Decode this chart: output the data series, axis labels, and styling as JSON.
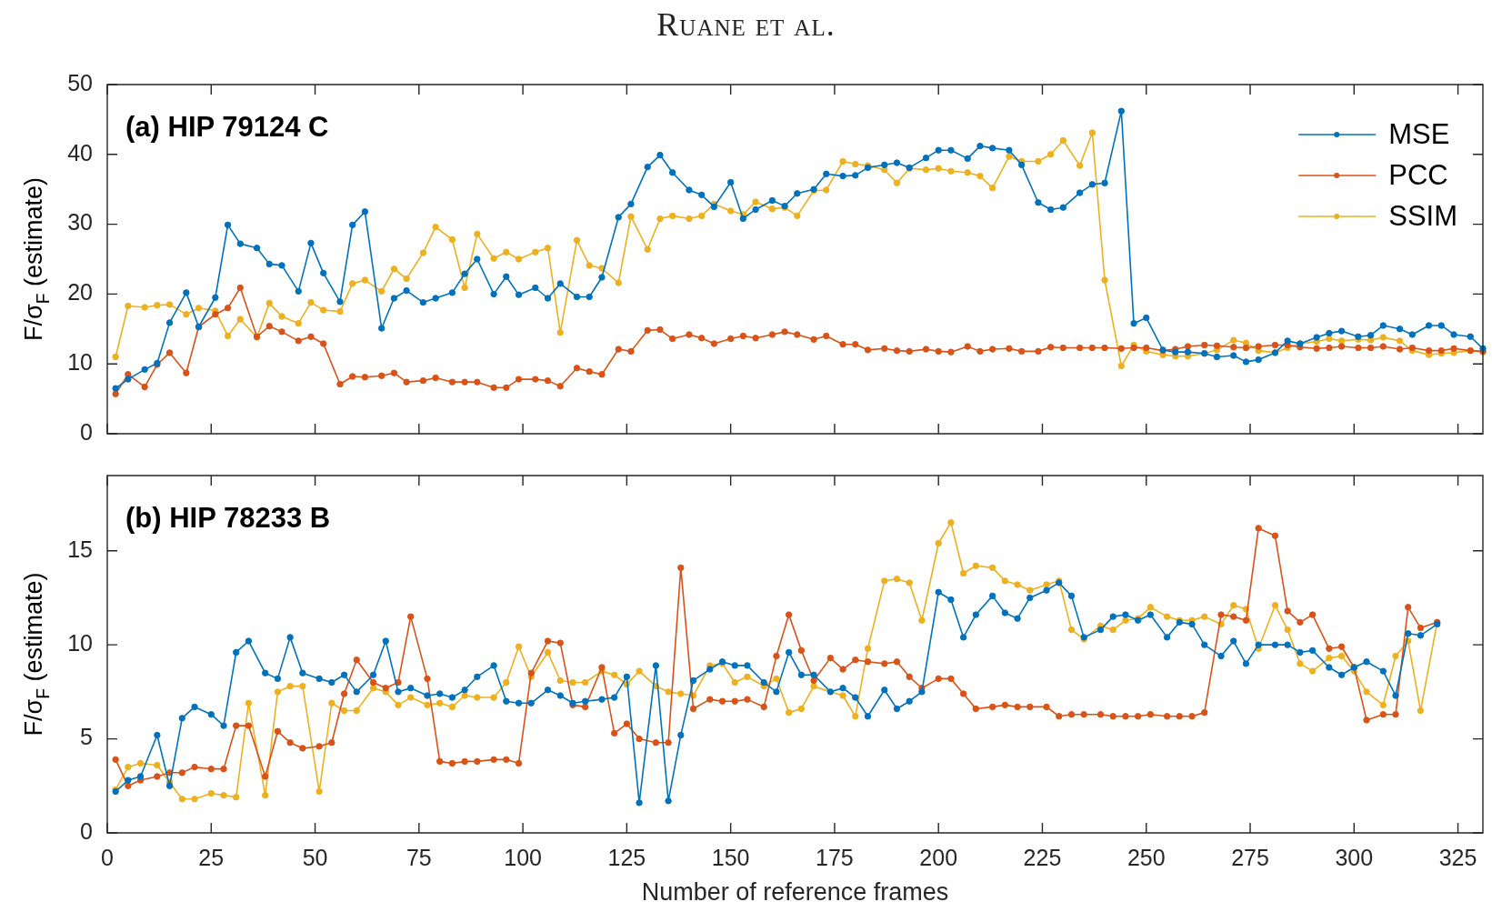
{
  "chart_data": [
    {
      "type": "line",
      "title": "(a) HIP 79124 C",
      "ylabel": "F/σ$_{F}$ (estimate)",
      "annotations": [
        "Ruane et al."
      ],
      "x": [
        2,
        5,
        9,
        12,
        15,
        19,
        22,
        26,
        29,
        32,
        36,
        39,
        42,
        46,
        49,
        52,
        56,
        59,
        62,
        66,
        69,
        72,
        76,
        79,
        83,
        86,
        89,
        93,
        96,
        99,
        103,
        106,
        109,
        113,
        116,
        119,
        123,
        126,
        130,
        133,
        136,
        140,
        143,
        146,
        150,
        153,
        156,
        160,
        163,
        166,
        170,
        173,
        177,
        180,
        183,
        187,
        190,
        193,
        197,
        200,
        203,
        207,
        210,
        213,
        217,
        220,
        224,
        227,
        230,
        234,
        237,
        240,
        244,
        247,
        250,
        254,
        257,
        260,
        264,
        267,
        271,
        274,
        277,
        281,
        284,
        287,
        291,
        294,
        297,
        301,
        304,
        307,
        311,
        314,
        318,
        321,
        324,
        328,
        331
      ],
      "series": [
        {
          "name": "MSE",
          "color": "#0072bd",
          "values": [
            6.5,
            7.8,
            9.2,
            10.1,
            15.9,
            20.2,
            15.3,
            19.5,
            29.9,
            27.2,
            26.6,
            24.3,
            24.1,
            20.4,
            27.3,
            23.0,
            18.9,
            29.9,
            31.8,
            15.1,
            19.4,
            20.5,
            18.8,
            19.4,
            20.2,
            22.9,
            25.0,
            20.0,
            22.5,
            19.9,
            20.9,
            19.4,
            21.5,
            19.6,
            19.6,
            22.4,
            31.0,
            32.9,
            38.2,
            39.9,
            37.4,
            34.9,
            34.2,
            32.5,
            36.0,
            30.8,
            32.1,
            33.4,
            32.6,
            34.4,
            35.0,
            37.2,
            36.9,
            37.0,
            38.1,
            38.5,
            38.8,
            38.1,
            39.5,
            40.6,
            40.6,
            39.4,
            41.2,
            40.9,
            40.6,
            38.5,
            33.1,
            32.1,
            32.4,
            34.5,
            35.7,
            35.9,
            46.2,
            15.8,
            16.6,
            12.0,
            11.7,
            11.7,
            11.5,
            11.0,
            11.2,
            10.3,
            10.6,
            11.6,
            13.3,
            12.9,
            13.8,
            14.4,
            14.7,
            13.9,
            14.1,
            15.5,
            15.0,
            14.2,
            15.5,
            15.5,
            14.2,
            13.9,
            12.2
          ]
        },
        {
          "name": "PCC",
          "color": "#d95319",
          "values": [
            5.7,
            8.5,
            6.7,
            9.9,
            11.6,
            8.7,
            15.3,
            17.1,
            18.0,
            20.9,
            13.9,
            15.4,
            14.6,
            13.3,
            13.9,
            12.9,
            7.1,
            8.2,
            8.1,
            8.3,
            8.7,
            7.4,
            7.6,
            8.0,
            7.4,
            7.4,
            7.4,
            6.6,
            6.6,
            7.8,
            7.8,
            7.6,
            6.8,
            9.4,
            8.9,
            8.5,
            12.1,
            11.8,
            14.8,
            14.9,
            13.6,
            14.2,
            13.7,
            12.9,
            13.6,
            14.0,
            13.7,
            14.2,
            14.6,
            14.2,
            13.5,
            14.0,
            12.8,
            12.8,
            12.0,
            12.2,
            11.9,
            11.8,
            12.1,
            11.8,
            11.7,
            12.5,
            11.8,
            12.1,
            12.2,
            11.8,
            11.8,
            12.4,
            12.3,
            12.3,
            12.3,
            12.3,
            12.2,
            12.3,
            12.3,
            11.9,
            12.1,
            12.5,
            12.7,
            12.6,
            12.4,
            12.3,
            12.5,
            12.7,
            12.7,
            12.4,
            12.2,
            12.3,
            12.5,
            12.3,
            12.3,
            12.5,
            12.1,
            12.3,
            11.9,
            11.9,
            12.2,
            11.9,
            11.8
          ]
        },
        {
          "name": "SSIM",
          "color": "#edb120",
          "values": [
            11.0,
            18.3,
            18.1,
            18.4,
            18.5,
            17.1,
            18.0,
            17.6,
            14.0,
            16.4,
            13.8,
            18.7,
            16.8,
            15.8,
            18.8,
            17.7,
            17.5,
            21.5,
            22.0,
            20.4,
            23.6,
            22.2,
            25.9,
            29.6,
            27.8,
            20.9,
            28.6,
            25.1,
            26.0,
            25.0,
            26.0,
            26.6,
            14.5,
            27.7,
            24.1,
            23.7,
            21.6,
            31.1,
            26.4,
            30.8,
            31.2,
            30.8,
            31.2,
            32.9,
            31.9,
            31.4,
            33.2,
            32.2,
            32.4,
            31.2,
            34.8,
            34.9,
            39.0,
            38.6,
            38.4,
            37.8,
            35.9,
            38.0,
            37.8,
            38.0,
            37.6,
            37.4,
            36.9,
            35.2,
            39.7,
            39.0,
            39.0,
            40.0,
            42.0,
            38.4,
            43.1,
            22.0,
            9.7,
            12.7,
            11.8,
            11.3,
            11.1,
            11.1,
            11.5,
            12.0,
            13.4,
            13.0,
            11.9,
            11.6,
            12.3,
            12.9,
            13.2,
            13.6,
            13.3,
            13.5,
            13.4,
            13.8,
            13.3,
            11.9,
            11.3,
            11.5,
            11.6,
            11.9,
            11.7
          ]
        }
      ],
      "xlim": [
        0,
        331
      ],
      "xticks": [
        0,
        25,
        50,
        75,
        100,
        125,
        150,
        175,
        200,
        225,
        250,
        275,
        300,
        325
      ],
      "ylim": [
        0,
        50
      ],
      "yticks": [
        0,
        10,
        20,
        30,
        40,
        50
      ],
      "tick_labels": "y",
      "marker": "circle",
      "legend": "top right"
    },
    {
      "type": "line",
      "title": "(b) HIP 78233 B",
      "xlabel": "Number of reference frames",
      "ylabel": "F/σ$_{F}$ (estimate)",
      "x": [
        2,
        5,
        8,
        12,
        15,
        18,
        21,
        25,
        28,
        31,
        34,
        38,
        41,
        44,
        47,
        51,
        54,
        57,
        60,
        64,
        67,
        70,
        73,
        77,
        80,
        83,
        86,
        89,
        93,
        96,
        99,
        102,
        106,
        109,
        112,
        115,
        119,
        122,
        125,
        128,
        132,
        135,
        138,
        141,
        145,
        148,
        151,
        154,
        158,
        161,
        164,
        167,
        170,
        174,
        177,
        180,
        183,
        187,
        190,
        193,
        196,
        200,
        203,
        206,
        209,
        213,
        216,
        219,
        222,
        226,
        229,
        232,
        235,
        239,
        242,
        245,
        248,
        251,
        255,
        258,
        261,
        264,
        268,
        271,
        274,
        277,
        281,
        284,
        287,
        290,
        294,
        297,
        300,
        303,
        307,
        310,
        313,
        316,
        320
      ],
      "series": [
        {
          "color": "#0072bd",
          "values": [
            2.2,
            2.8,
            3.0,
            5.2,
            2.5,
            6.1,
            6.7,
            6.3,
            5.7,
            9.6,
            10.2,
            8.5,
            8.2,
            10.4,
            8.5,
            8.2,
            8.0,
            8.4,
            7.5,
            8.4,
            10.2,
            7.5,
            7.7,
            7.3,
            7.4,
            7.2,
            7.6,
            8.3,
            8.9,
            7.0,
            6.9,
            6.9,
            7.6,
            7.3,
            6.9,
            7.0,
            7.1,
            7.2,
            8.3,
            1.6,
            8.9,
            1.7,
            5.2,
            8.1,
            8.7,
            9.1,
            8.9,
            8.9,
            8.0,
            7.5,
            9.6,
            8.4,
            8.4,
            7.5,
            7.7,
            7.2,
            6.2,
            7.6,
            6.6,
            7.0,
            7.5,
            12.8,
            12.4,
            10.4,
            11.6,
            12.6,
            11.7,
            11.4,
            12.5,
            12.9,
            13.3,
            12.6,
            10.4,
            10.8,
            11.5,
            11.6,
            11.3,
            11.6,
            10.4,
            11.2,
            11.1,
            10.0,
            9.4,
            10.2,
            9.0,
            10.0,
            10.0,
            10.0,
            9.6,
            9.7,
            8.8,
            8.4,
            8.8,
            9.1,
            8.6,
            7.3,
            10.6,
            10.5,
            11.1
          ]
        },
        {
          "color": "#d95319",
          "values": [
            3.9,
            2.5,
            2.8,
            3.0,
            3.2,
            3.2,
            3.5,
            3.4,
            3.4,
            5.7,
            5.7,
            3.0,
            5.4,
            4.8,
            4.5,
            4.6,
            4.8,
            7.4,
            9.2,
            8.0,
            7.7,
            8.0,
            11.5,
            8.2,
            3.8,
            3.7,
            3.8,
            3.8,
            3.9,
            3.9,
            3.7,
            8.5,
            10.2,
            10.1,
            6.8,
            6.7,
            8.8,
            5.3,
            5.8,
            5.0,
            4.8,
            4.8,
            14.1,
            6.6,
            7.1,
            7.0,
            7.0,
            7.1,
            6.7,
            9.4,
            11.6,
            9.7,
            8.1,
            9.3,
            8.7,
            9.2,
            9.1,
            9.0,
            9.1,
            8.3,
            7.7,
            8.2,
            8.2,
            7.4,
            6.6,
            6.7,
            6.8,
            6.7,
            6.7,
            6.7,
            6.2,
            6.3,
            6.3,
            6.3,
            6.2,
            6.2,
            6.2,
            6.3,
            6.2,
            6.2,
            6.2,
            6.4,
            11.6,
            11.5,
            11.3,
            16.2,
            15.8,
            11.8,
            11.2,
            11.6,
            9.8,
            9.9,
            8.8,
            6.0,
            6.3,
            6.3,
            12.0,
            10.9,
            11.2
          ]
        },
        {
          "color": "#edb120",
          "values": [
            2.3,
            3.5,
            3.7,
            3.6,
            2.7,
            1.8,
            1.8,
            2.1,
            2.0,
            1.9,
            6.9,
            2.0,
            7.5,
            7.8,
            7.8,
            2.2,
            6.9,
            6.5,
            6.5,
            7.7,
            7.5,
            6.8,
            7.2,
            6.8,
            6.9,
            6.7,
            7.3,
            7.2,
            7.2,
            8.0,
            9.9,
            8.3,
            9.6,
            8.1,
            8.0,
            8.0,
            8.6,
            8.4,
            7.9,
            8.6,
            7.8,
            7.5,
            7.4,
            7.3,
            8.9,
            9.0,
            8.0,
            8.3,
            7.8,
            8.2,
            6.4,
            6.6,
            7.8,
            7.5,
            7.3,
            6.2,
            9.8,
            13.4,
            13.5,
            13.3,
            11.3,
            15.4,
            16.5,
            13.8,
            14.2,
            14.1,
            13.4,
            13.2,
            12.9,
            13.2,
            13.4,
            10.8,
            10.3,
            11.0,
            10.8,
            11.3,
            11.4,
            12.0,
            11.5,
            11.3,
            11.3,
            11.5,
            11.1,
            12.1,
            11.9,
            9.8,
            12.1,
            10.8,
            9.0,
            8.6,
            9.3,
            9.4,
            8.6,
            7.5,
            6.8,
            9.4,
            10.2,
            6.5,
            11.2
          ]
        }
      ],
      "xlim": [
        0,
        331
      ],
      "xticks": [
        0,
        25,
        50,
        75,
        100,
        125,
        150,
        175,
        200,
        225,
        250,
        275,
        300,
        325
      ],
      "ylim": [
        0,
        19
      ],
      "yticks": [
        0,
        5,
        10,
        15
      ],
      "marker": "circle"
    }
  ]
}
